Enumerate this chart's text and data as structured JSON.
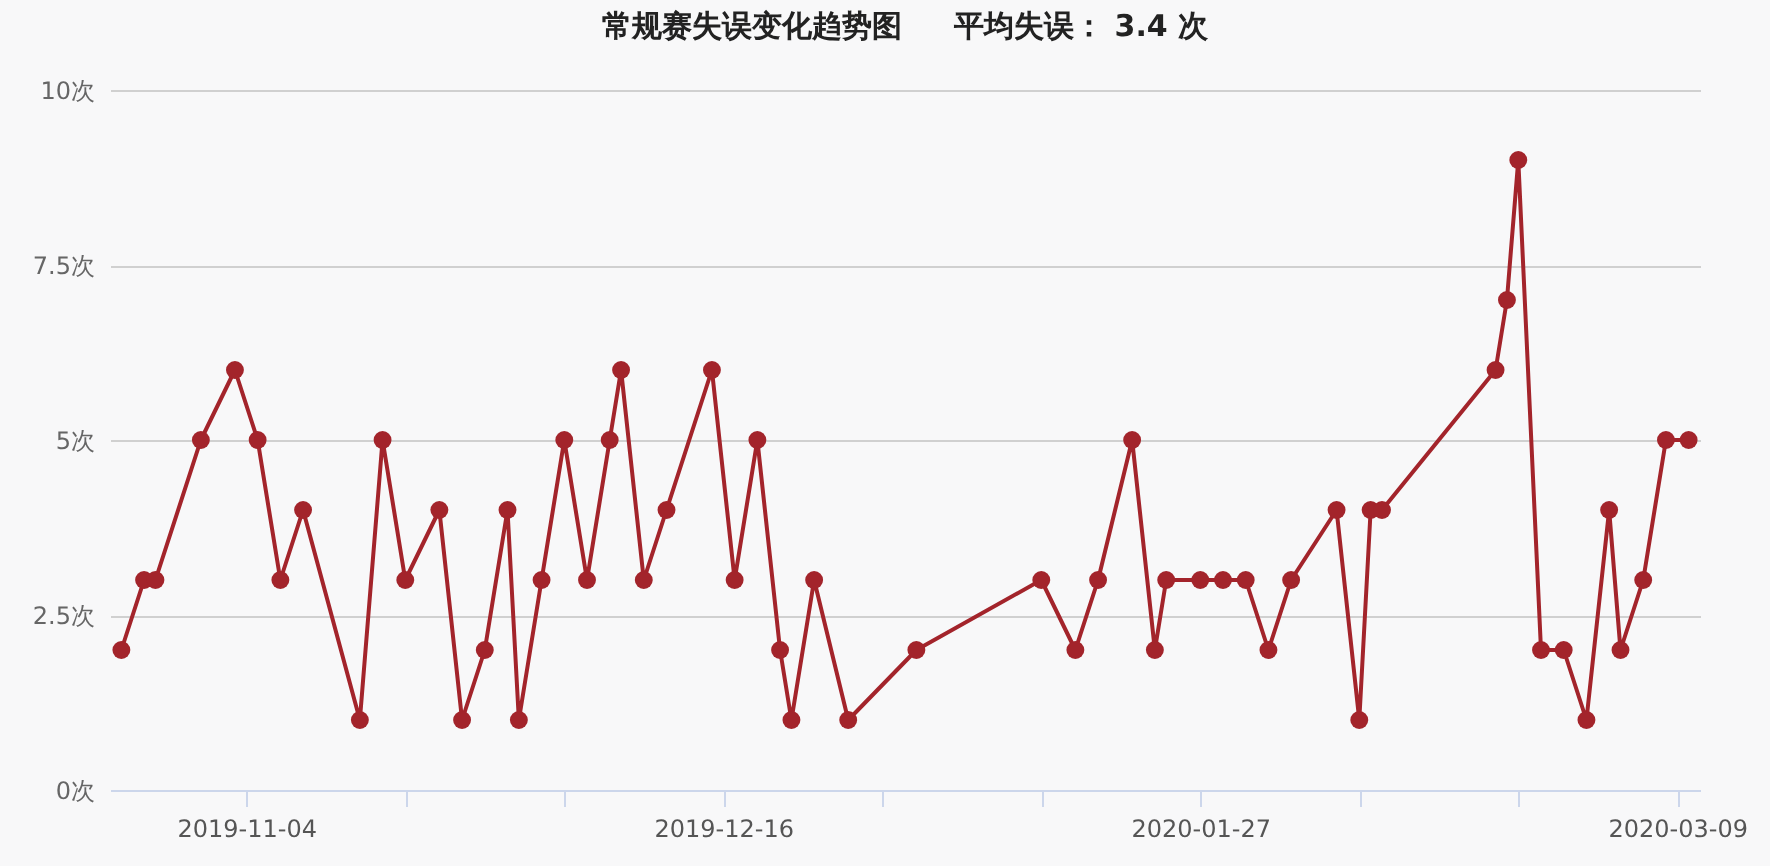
{
  "chart_data": {
    "type": "line",
    "title": "常规赛失误变化趋势图     平均失误： 3.4 次",
    "x": [
      "2019-10-24",
      "2019-10-26",
      "2019-10-27",
      "2019-10-31",
      "2019-11-03",
      "2019-11-05",
      "2019-11-07",
      "2019-11-09",
      "2019-11-14",
      "2019-11-16",
      "2019-11-18",
      "2019-11-21",
      "2019-11-23",
      "2019-11-25",
      "2019-11-27",
      "2019-11-28",
      "2019-11-30",
      "2019-12-02",
      "2019-12-04",
      "2019-12-06",
      "2019-12-07",
      "2019-12-09",
      "2019-12-11",
      "2019-12-15",
      "2019-12-17",
      "2019-12-19",
      "2019-12-21",
      "2019-12-22",
      "2019-12-24",
      "2019-12-27",
      "2020-01-02",
      "2020-01-13",
      "2020-01-16",
      "2020-01-18",
      "2020-01-21",
      "2020-01-23",
      "2020-01-24",
      "2020-01-27",
      "2020-01-29",
      "2020-01-31",
      "2020-02-02",
      "2020-02-04",
      "2020-02-08",
      "2020-02-10",
      "2020-02-11",
      "2020-02-12",
      "2020-02-22",
      "2020-02-23",
      "2020-02-24",
      "2020-02-26",
      "2020-02-28",
      "2020-03-01",
      "2020-03-03",
      "2020-03-04",
      "2020-03-06",
      "2020-03-08",
      "2020-03-10"
    ],
    "series": [
      {
        "color": "#a3242b",
        "values": [
          2,
          3,
          3,
          5,
          6,
          5,
          3,
          4,
          1,
          5,
          3,
          4,
          1,
          2,
          4,
          1,
          3,
          5,
          3,
          5,
          6,
          3,
          4,
          6,
          3,
          5,
          2,
          1,
          3,
          1,
          2,
          3,
          2,
          3,
          5,
          2,
          3,
          3,
          3,
          3,
          2,
          3,
          4,
          1,
          4,
          4,
          6,
          7,
          9,
          2,
          2,
          1,
          4,
          2,
          3,
          5,
          5
        ]
      }
    ],
    "xlim": [
      "2019-10-23",
      "2020-03-11"
    ],
    "xticks": [
      {
        "value": "2019-11-04",
        "label": "2019-11-04"
      },
      {
        "value": "2019-11-18",
        "label": null
      },
      {
        "value": "2019-12-02",
        "label": null
      },
      {
        "value": "2019-12-16",
        "label": "2019-12-16"
      },
      {
        "value": "2019-12-30",
        "label": null
      },
      {
        "value": "2020-01-13",
        "label": null
      },
      {
        "value": "2020-01-27",
        "label": "2020-01-27"
      },
      {
        "value": "2020-02-10",
        "label": null
      },
      {
        "value": "2020-02-24",
        "label": null
      },
      {
        "value": "2020-03-09",
        "label": "2020-03-09"
      }
    ],
    "ylim": [
      0,
      10
    ],
    "yticks": [
      {
        "value": 0,
        "label": "0次"
      },
      {
        "value": 2.5,
        "label": "2.5次"
      },
      {
        "value": 5,
        "label": "5次"
      },
      {
        "value": 7.5,
        "label": "7.5次"
      },
      {
        "value": 10,
        "label": "10次"
      }
    ],
    "grid": "y",
    "marker": "circle",
    "line_style": "solid"
  }
}
